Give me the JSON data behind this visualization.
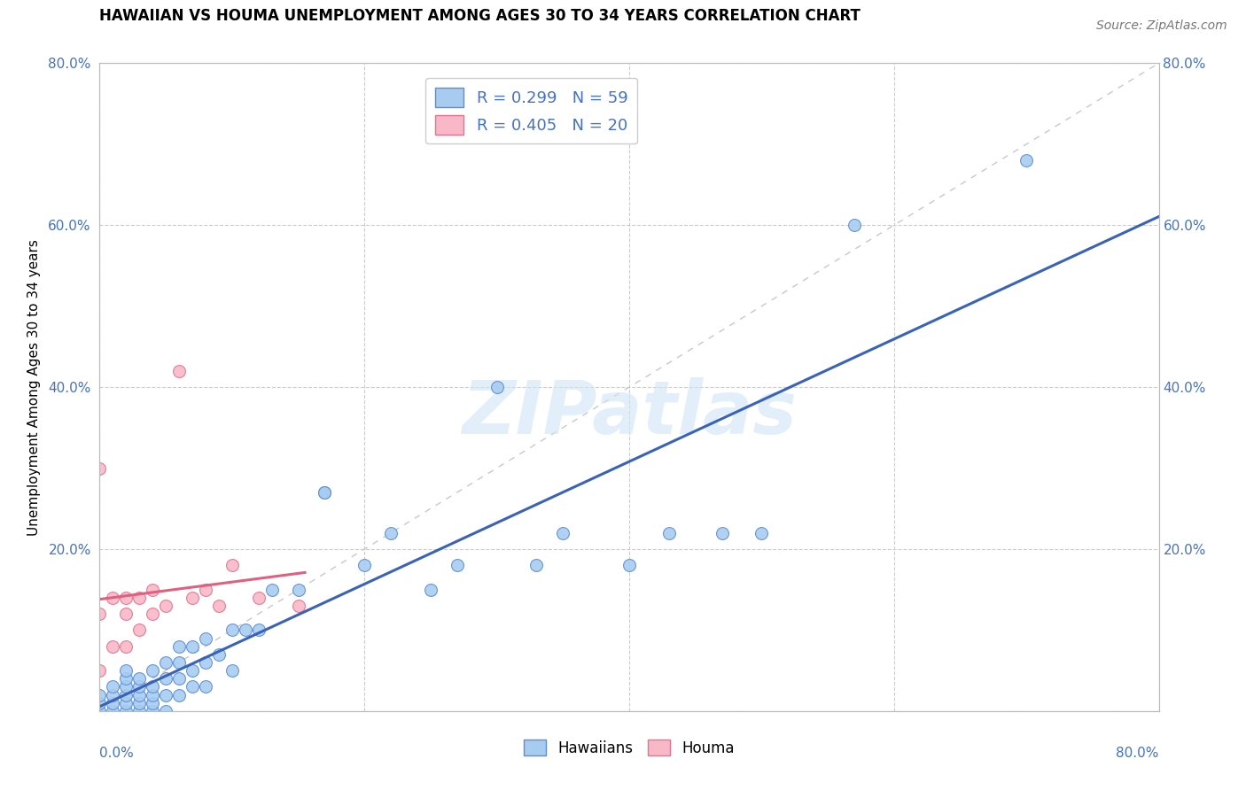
{
  "title": "HAWAIIAN VS HOUMA UNEMPLOYMENT AMONG AGES 30 TO 34 YEARS CORRELATION CHART",
  "source": "Source: ZipAtlas.com",
  "ylabel": "Unemployment Among Ages 30 to 34 years",
  "xlim": [
    0,
    0.8
  ],
  "ylim": [
    0,
    0.8
  ],
  "legend_hawaiian": "R = 0.299   N = 59",
  "legend_houma": "R = 0.405   N = 20",
  "hawaiian_color": "#A8CCF0",
  "houma_color": "#F9B8C8",
  "hawaiian_edge_color": "#5B8ED6",
  "houma_edge_color": "#E87090",
  "hawaiian_line_color": "#3A63B8",
  "houma_line_color": "#E06080",
  "diagonal_color": "#C8C8C8",
  "tick_color": "#4472C4",
  "watermark": "ZIPatlas",
  "hawaiian_x": [
    0.0,
    0.0,
    0.0,
    0.01,
    0.01,
    0.01,
    0.01,
    0.02,
    0.02,
    0.02,
    0.02,
    0.02,
    0.02,
    0.03,
    0.03,
    0.03,
    0.03,
    0.03,
    0.04,
    0.04,
    0.04,
    0.04,
    0.04,
    0.05,
    0.05,
    0.05,
    0.05,
    0.06,
    0.06,
    0.06,
    0.06,
    0.07,
    0.07,
    0.07,
    0.08,
    0.08,
    0.08,
    0.09,
    0.1,
    0.1,
    0.11,
    0.12,
    0.13,
    0.15,
    0.17,
    0.17,
    0.2,
    0.22,
    0.25,
    0.27,
    0.3,
    0.33,
    0.35,
    0.4,
    0.43,
    0.47,
    0.5,
    0.57,
    0.7
  ],
  "hawaiian_y": [
    0.0,
    0.01,
    0.02,
    0.0,
    0.01,
    0.02,
    0.03,
    0.0,
    0.01,
    0.02,
    0.03,
    0.04,
    0.05,
    0.0,
    0.01,
    0.02,
    0.03,
    0.04,
    0.0,
    0.01,
    0.02,
    0.03,
    0.05,
    0.0,
    0.02,
    0.04,
    0.06,
    0.02,
    0.04,
    0.06,
    0.08,
    0.03,
    0.05,
    0.08,
    0.03,
    0.06,
    0.09,
    0.07,
    0.05,
    0.1,
    0.1,
    0.1,
    0.15,
    0.15,
    0.27,
    0.27,
    0.18,
    0.22,
    0.15,
    0.18,
    0.4,
    0.18,
    0.22,
    0.18,
    0.22,
    0.22,
    0.22,
    0.6,
    0.68
  ],
  "houma_x": [
    0.0,
    0.0,
    0.0,
    0.01,
    0.01,
    0.02,
    0.02,
    0.02,
    0.03,
    0.03,
    0.04,
    0.04,
    0.05,
    0.06,
    0.07,
    0.08,
    0.09,
    0.1,
    0.12,
    0.15
  ],
  "houma_y": [
    0.05,
    0.12,
    0.3,
    0.08,
    0.14,
    0.08,
    0.12,
    0.14,
    0.1,
    0.14,
    0.12,
    0.15,
    0.13,
    0.42,
    0.14,
    0.15,
    0.13,
    0.18,
    0.14,
    0.13
  ],
  "tick_vals": [
    0.0,
    0.2,
    0.4,
    0.6,
    0.8
  ],
  "tick_labels_left": [
    "",
    "20.0%",
    "40.0%",
    "60.0%",
    "80.0%"
  ],
  "tick_labels_right": [
    "",
    "20.0%",
    "40.0%",
    "60.0%",
    "80.0%"
  ]
}
